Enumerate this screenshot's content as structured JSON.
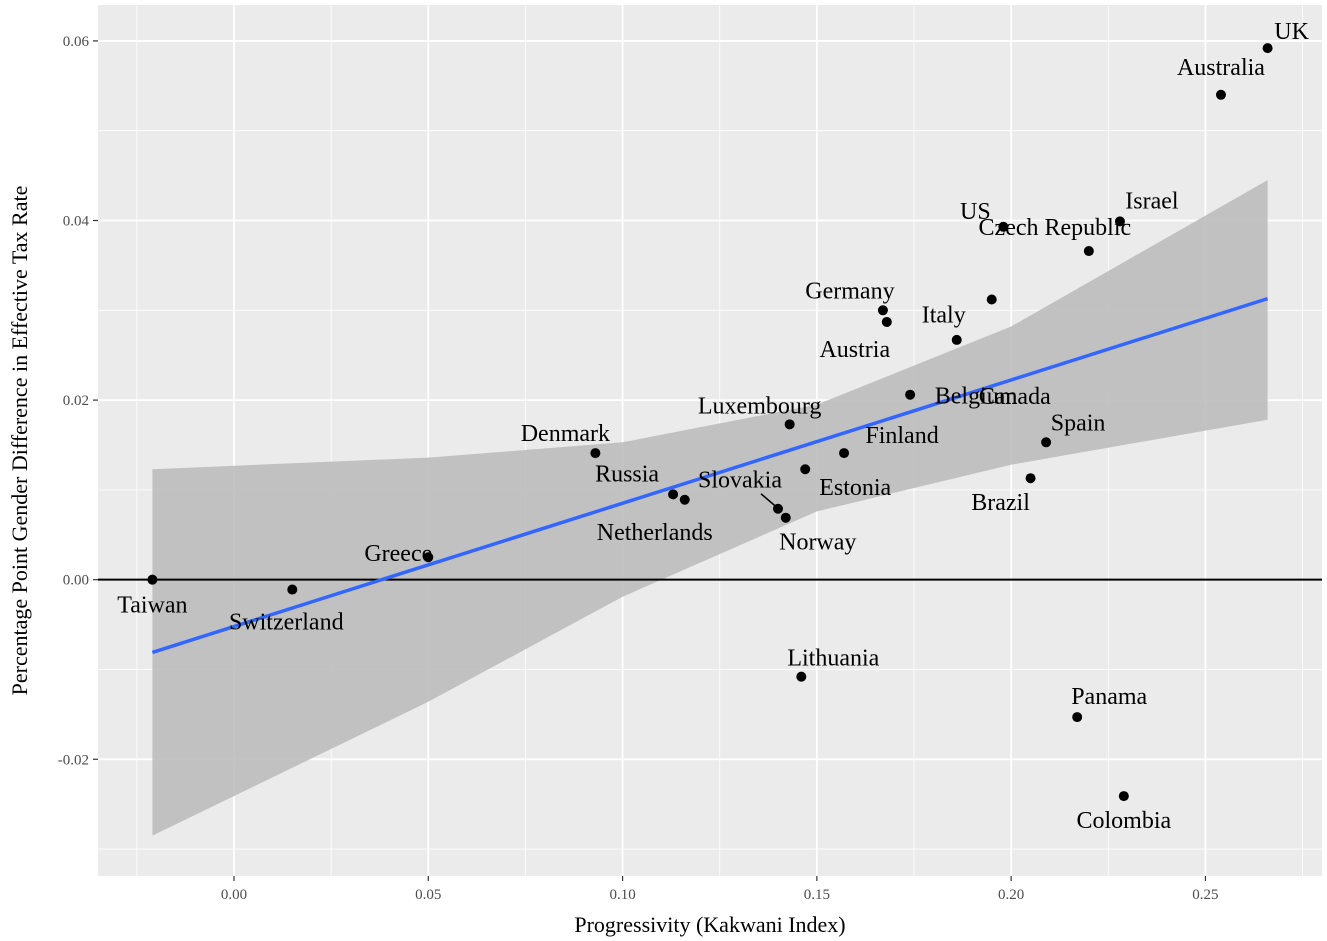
{
  "chart_data": {
    "type": "scatter",
    "title": "",
    "xlabel": "Progressivity (Kakwani Index)",
    "ylabel": "Percentage Point Gender Difference in Effective Tax Rate",
    "xlim": [
      -0.035,
      0.28
    ],
    "ylim": [
      -0.033,
      0.064
    ],
    "x_ticks": [
      0.0,
      0.05,
      0.1,
      0.15,
      0.2,
      0.25
    ],
    "x_tick_labels": [
      "0.00",
      "0.05",
      "0.10",
      "0.15",
      "0.20",
      "0.25"
    ],
    "y_ticks": [
      -0.02,
      0.0,
      0.02,
      0.04,
      0.06
    ],
    "y_tick_labels": [
      "-0.02",
      "0.00",
      "0.02",
      "0.04",
      "0.06"
    ],
    "grid": true,
    "reference_line_y": 0,
    "points": [
      {
        "label": "UK",
        "x": 0.266,
        "y": 0.0592
      },
      {
        "label": "Australia",
        "x": 0.254,
        "y": 0.054
      },
      {
        "label": "Israel",
        "x": 0.228,
        "y": 0.0399
      },
      {
        "label": "US",
        "x": 0.198,
        "y": 0.0393
      },
      {
        "label": "Czech Republic",
        "x": 0.22,
        "y": 0.0366
      },
      {
        "label": "Italy",
        "x": 0.195,
        "y": 0.0312
      },
      {
        "label": "Germany",
        "x": 0.167,
        "y": 0.03
      },
      {
        "label": "Austria",
        "x": 0.168,
        "y": 0.0287
      },
      {
        "label": "Canada",
        "x": 0.186,
        "y": 0.0267
      },
      {
        "label": "Belgium",
        "x": 0.174,
        "y": 0.0206
      },
      {
        "label": "Luxembourg",
        "x": 0.143,
        "y": 0.0173
      },
      {
        "label": "Spain",
        "x": 0.209,
        "y": 0.0153
      },
      {
        "label": "Denmark",
        "x": 0.093,
        "y": 0.0141
      },
      {
        "label": "Finland",
        "x": 0.157,
        "y": 0.0141
      },
      {
        "label": "Estonia",
        "x": 0.147,
        "y": 0.0123
      },
      {
        "label": "Brazil",
        "x": 0.205,
        "y": 0.0113
      },
      {
        "label": "Russia",
        "x": 0.113,
        "y": 0.0095
      },
      {
        "label": "Netherlands",
        "x": 0.116,
        "y": 0.0089
      },
      {
        "label": "Slovakia",
        "x": 0.14,
        "y": 0.0079
      },
      {
        "label": "Norway",
        "x": 0.142,
        "y": 0.0069
      },
      {
        "label": "Greece",
        "x": 0.05,
        "y": 0.0025
      },
      {
        "label": "Taiwan",
        "x": -0.021,
        "y": 0.0
      },
      {
        "label": "Switzerland",
        "x": 0.015,
        "y": -0.0011
      },
      {
        "label": "Lithuania",
        "x": 0.146,
        "y": -0.0108
      },
      {
        "label": "Panama",
        "x": 0.217,
        "y": -0.0153
      },
      {
        "label": "Colombia",
        "x": 0.229,
        "y": -0.0241
      }
    ],
    "fit": {
      "type": "linear",
      "color": "#3366ff",
      "x": [
        -0.021,
        0.266
      ],
      "y": [
        -0.0081,
        0.0313
      ],
      "ci_band": {
        "x": [
          -0.021,
          0.05,
          0.1,
          0.15,
          0.2,
          0.266
        ],
        "upper": [
          0.0123,
          0.0136,
          0.0153,
          0.0195,
          0.0282,
          0.0445
        ],
        "lower": [
          -0.0285,
          -0.0136,
          -0.0019,
          0.0076,
          0.0128,
          0.0178
        ]
      }
    },
    "colors": {
      "panel": "#ebebeb",
      "grid": "#ffffff",
      "ribbon": "#bdbdbd",
      "point": "#000000",
      "zero_line": "#000000"
    }
  }
}
